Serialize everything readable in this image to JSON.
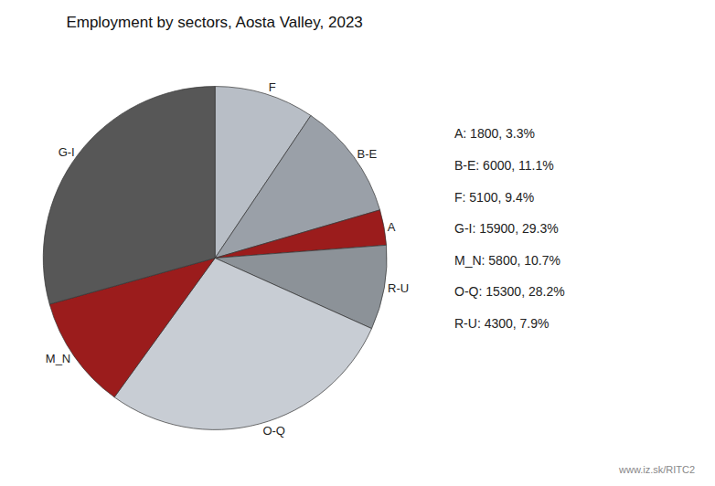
{
  "chart_data": {
    "type": "pie",
    "title": "Employment by sectors, Aosta Valley, 2023",
    "categories": [
      "F",
      "B-E",
      "A",
      "R-U",
      "O-Q",
      "M_N",
      "G-I"
    ],
    "values": [
      5100,
      6000,
      1800,
      4300,
      15300,
      5800,
      15900
    ],
    "colors": [
      "#b8bec6",
      "#9aa0a8",
      "#9b1c1c",
      "#8c9298",
      "#c8cdd4",
      "#9b1c1c",
      "#575757"
    ],
    "annotations": [
      "A: 1800, 3.3%",
      "B-E: 6000, 11.1%",
      "F: 5100, 9.4%",
      "G-I: 15900, 29.3%",
      "M_N: 5800, 10.7%",
      "O-Q: 15300, 28.2%",
      "R-U: 4300, 7.9%",
      "www.iz.sk/RITC2"
    ]
  }
}
